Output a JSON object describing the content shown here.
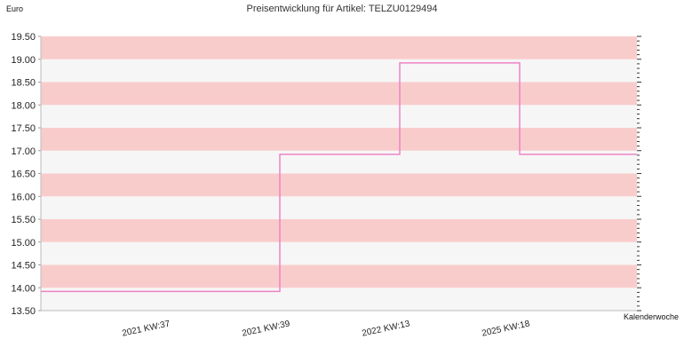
{
  "chart_data": {
    "type": "line",
    "step": true,
    "title": "Preisentwicklung für Artikel: TELZU0129494",
    "ylabel": "Euro",
    "xlabel": "Kalenderwoche",
    "ylim": [
      13.5,
      19.5
    ],
    "ytick_step": 0.5,
    "yticks": [
      "13.50",
      "14.00",
      "14.50",
      "15.00",
      "15.50",
      "16.00",
      "16.50",
      "17.00",
      "17.50",
      "18.00",
      "18.50",
      "19.00",
      "19.50"
    ],
    "categories": [
      "2021 KW:37",
      "2021 KW:39",
      "2022 KW:13",
      "2025 KW:18"
    ],
    "series": [
      {
        "values": [
          13.92,
          16.92,
          18.92,
          16.92
        ]
      }
    ],
    "band_colors": [
      "#f9cccc",
      "#f6f6f6"
    ],
    "line_color": "#ee82c6",
    "grid": true
  }
}
